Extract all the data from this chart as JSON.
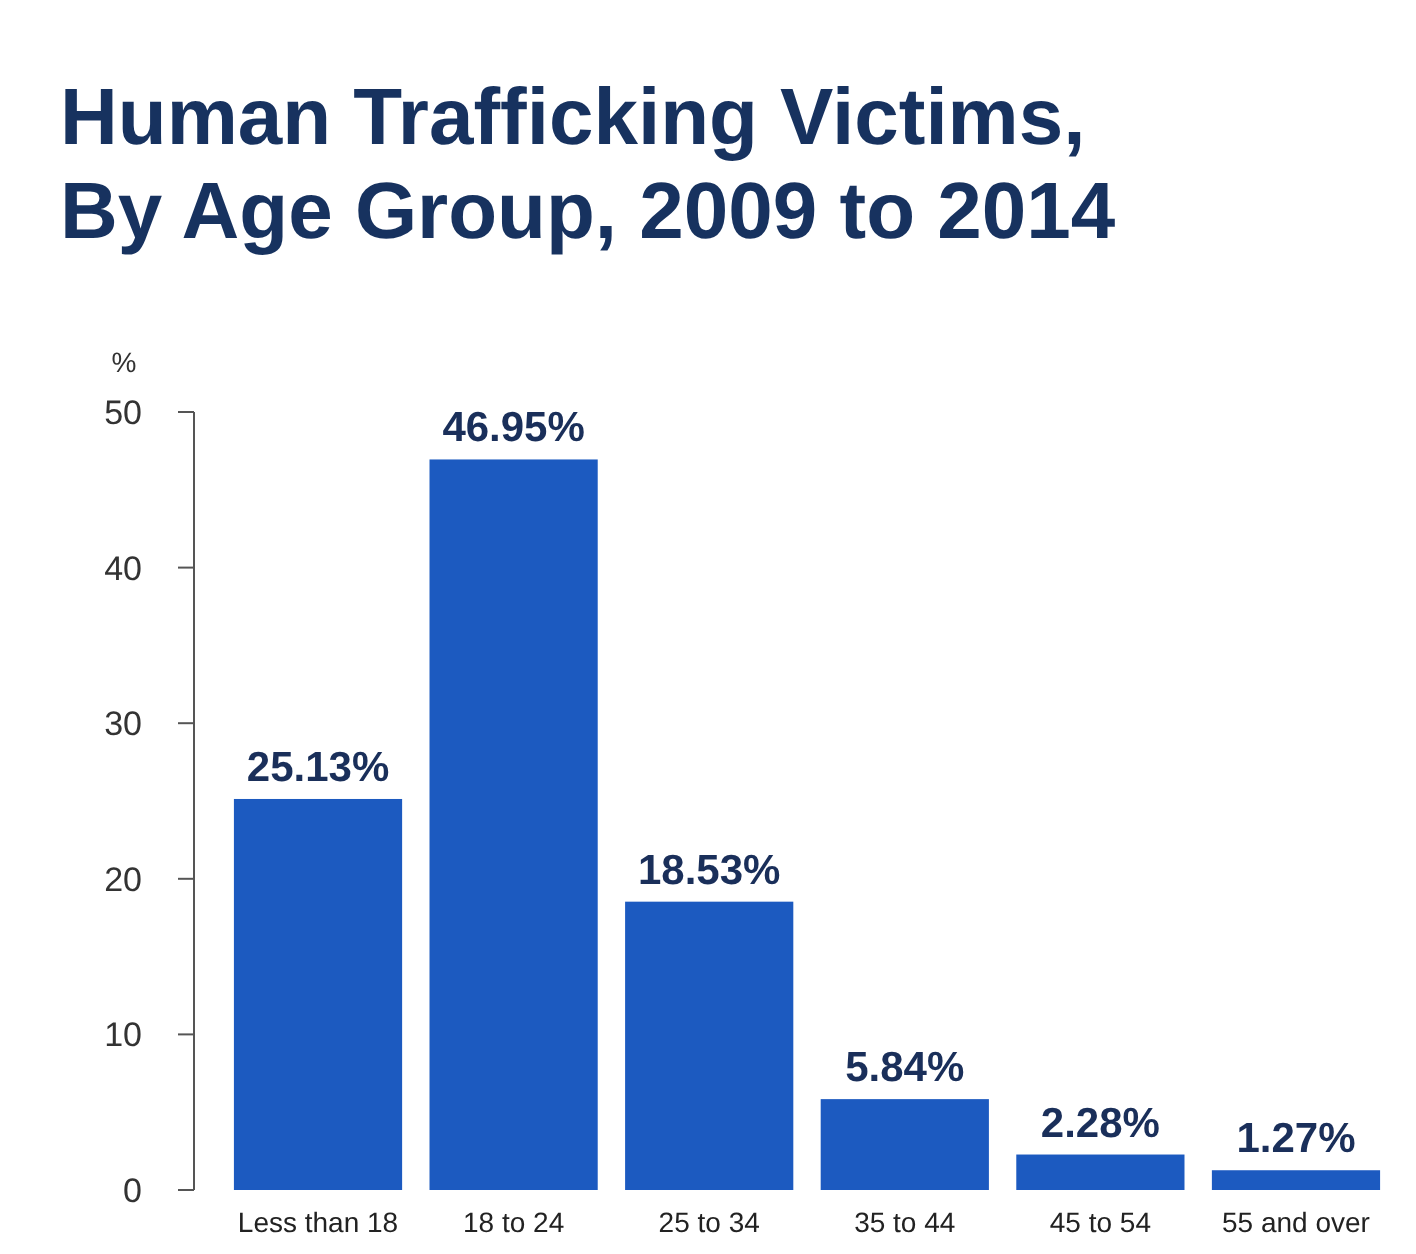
{
  "chart_data": {
    "type": "bar",
    "title": "Human Trafficking Victims,\nBy Age Group, 2009 to 2014",
    "ylabel": "%",
    "categories": [
      "Less than 18",
      "18 to 24",
      "25 to 34",
      "35 to 44",
      "45 to 54",
      "55 and over"
    ],
    "values": [
      25.13,
      46.95,
      18.53,
      5.84,
      2.28,
      1.27
    ],
    "value_labels": [
      "25.13%",
      "46.95%",
      "18.53%",
      "5.84%",
      "2.28%",
      "1.27%"
    ],
    "color": "#1c5ac0",
    "ylim": [
      0,
      50
    ],
    "yticks": [
      0,
      10,
      20,
      30,
      40,
      50
    ],
    "grid": false
  }
}
